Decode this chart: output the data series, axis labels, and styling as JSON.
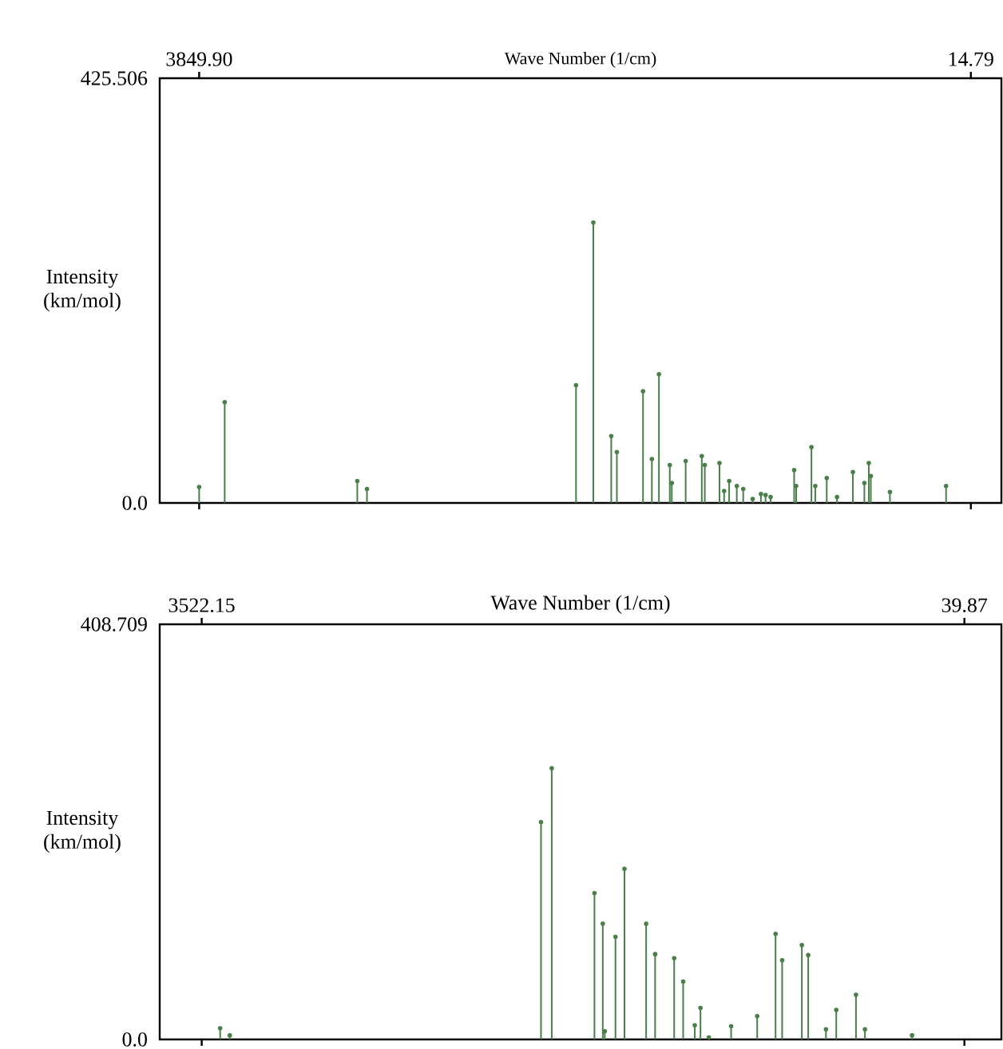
{
  "chart_data": [
    {
      "type": "lollipop",
      "xlabel": "Wave Number (1/cm)",
      "ylabel": "Intensity (km/mol)",
      "xlim": [
        4046,
        -137
      ],
      "ylim": [
        0,
        425.506
      ],
      "xticks": [
        {
          "value": 3849.9,
          "label": "3849.90"
        },
        14.79
      ],
      "yticks": [
        {
          "value": 0,
          "label": "0.0"
        },
        425.506
      ],
      "grid": false,
      "marker": "circle",
      "x": [
        3850,
        3723,
        3064,
        3016,
        1977,
        1891,
        1802,
        1774,
        1644,
        1600,
        1565,
        1511,
        1501,
        1432,
        1352,
        1337,
        1264,
        1241,
        1216,
        1178,
        1146,
        1099,
        1058,
        1035,
        1010,
        893,
        883,
        807,
        788,
        731,
        680,
        601,
        544,
        522,
        512,
        417,
        138
      ],
      "series": [
        {
          "color": "#4a7f4a",
          "values": [
            16,
            101,
            22,
            14,
            118,
            281,
            67,
            51,
            112,
            44,
            129,
            38,
            20,
            42,
            47,
            38,
            40,
            12,
            22,
            17,
            14,
            4,
            9,
            8,
            6,
            33,
            17,
            56,
            17,
            25,
            6,
            31,
            20,
            40,
            27,
            11,
            17
          ]
        }
      ]
    },
    {
      "type": "lollipop",
      "xlabel": "Wave Number (1/cm)",
      "ylabel": "Intensity (km/mol)",
      "xlim": [
        3714,
        -129
      ],
      "ylim": [
        0,
        408.709
      ],
      "xticks": [
        3522.15,
        39.87
      ],
      "yticks": [
        {
          "value": 0,
          "label": "0.0"
        },
        408.709
      ],
      "grid": false,
      "marker": "circle",
      "x": [
        3438,
        3394,
        1973,
        1924,
        1729,
        1691,
        1682,
        1633,
        1592,
        1493,
        1452,
        1365,
        1324,
        1271,
        1245,
        1207,
        1105,
        986,
        902,
        872,
        782,
        753,
        672,
        625,
        535,
        494,
        279
      ],
      "series": [
        {
          "color": "#4a7f4a",
          "values": [
            11,
            4,
            214,
            267,
            144,
            114,
            8,
            101,
            168,
            114,
            84,
            80,
            57,
            14,
            31,
            2,
            13,
            23,
            104,
            78,
            93,
            83,
            10,
            29,
            44,
            10,
            4
          ]
        }
      ]
    }
  ]
}
